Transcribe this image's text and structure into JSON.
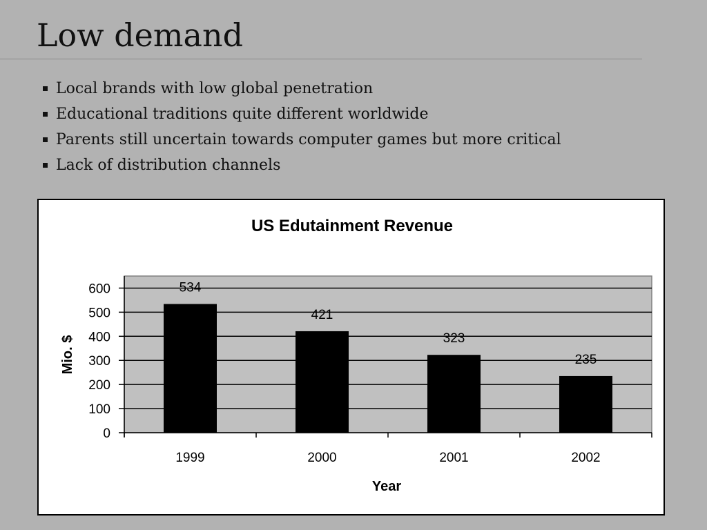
{
  "slide": {
    "title": "Low demand",
    "bullets": [
      "Local brands with low global penetration",
      "Educational traditions quite different worldwide",
      "Parents still uncertain towards computer games but more critical",
      "Lack of distribution channels"
    ]
  },
  "chart_data": {
    "type": "bar",
    "title": "US Edutainment Revenue",
    "xlabel": "Year",
    "ylabel": "Mio. $",
    "categories": [
      "1999",
      "2000",
      "2001",
      "2002"
    ],
    "values": [
      534,
      421,
      323,
      235
    ],
    "data_labels": [
      "534",
      "421",
      "323",
      "235"
    ],
    "ylim": [
      0,
      650
    ],
    "yticks": [
      0,
      100,
      200,
      300,
      400,
      500,
      600
    ],
    "grid": true,
    "legend": "none",
    "colors": {
      "bar": "#000000",
      "plot_bg": "#c0c0c0"
    }
  }
}
